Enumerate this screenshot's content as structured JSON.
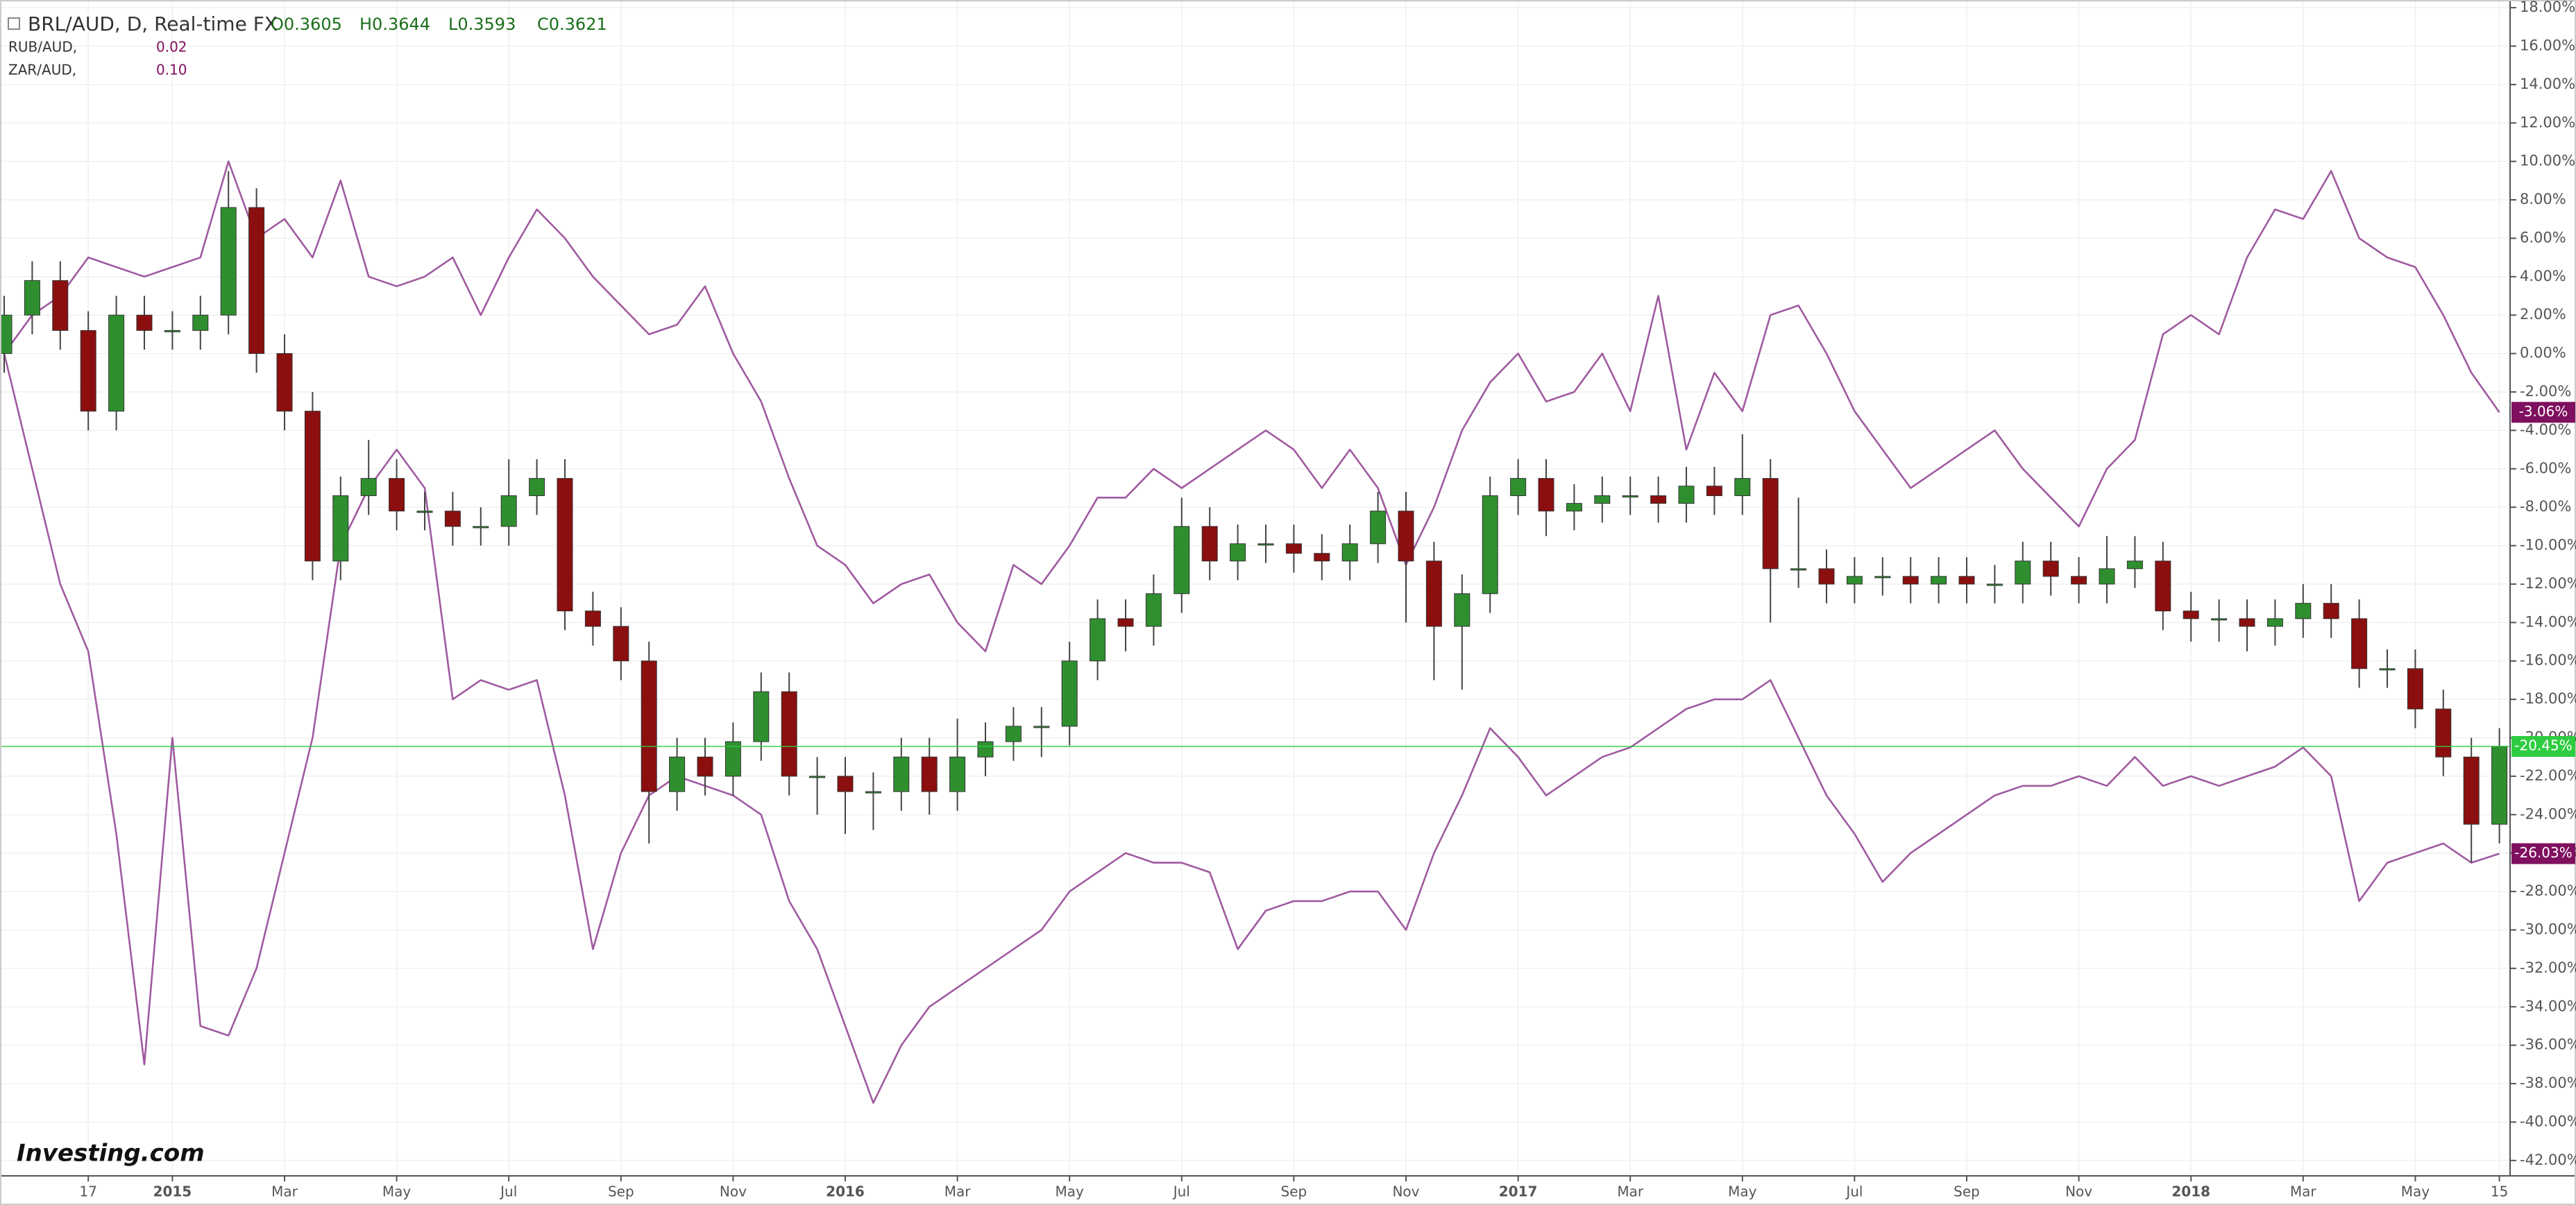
{
  "chart_data": {
    "type": "candlestick",
    "watermark": "Investing.com",
    "candles": {
      "name": "BRL/AUD, D, Real-time FX",
      "ohlc_labels": [
        "O0.3605",
        "H0.3644",
        "L0.3593",
        "C0.3621"
      ],
      "last_label": "-20.45%",
      "up_color": "#2f8f2f",
      "down_color": "#8b0f0f",
      "last_color": "#2ecc40",
      "open": [
        0,
        2,
        3.8,
        1.2,
        -3,
        2,
        1.2,
        1.2,
        2,
        7.6,
        0,
        -3,
        -10.8,
        -7.4,
        -6.5,
        -8.2,
        -8.2,
        -9,
        -9,
        -7.4,
        -6.5,
        -13.4,
        -14.2,
        -16,
        -22.8,
        -21,
        -22,
        -20.2,
        -17.6,
        -22,
        -22,
        -22.8,
        -22.8,
        -21,
        -22.8,
        -21,
        -20.2,
        -19.4,
        -19.4,
        -16,
        -13.8,
        -14.2,
        -12.5,
        -9,
        -10.8,
        -9.9,
        -9.9,
        -10.4,
        -10.8,
        -9.9,
        -8.2,
        -10.8,
        -14.2,
        -12.5,
        -7.4,
        -6.5,
        -8.2,
        -7.8,
        -7.4,
        -7.4,
        -7.8,
        -6.9,
        -7.4,
        -6.5,
        -11.2,
        -11.2,
        -12,
        -11.6,
        -11.6,
        -12,
        -11.6,
        -12,
        -12,
        -10.8,
        -11.6,
        -12,
        -11.2,
        -10.8,
        -13.4,
        -13.8,
        -13.8,
        -14.2,
        -13.8,
        -13,
        -13.8,
        -16.4,
        -16.4,
        -18.5,
        -21,
        -24.5
      ],
      "high": [
        3,
        4.8,
        4.8,
        2.2,
        3,
        3,
        2.2,
        3,
        9.5,
        8.6,
        1,
        -2,
        -6.4,
        -4.5,
        -5.5,
        -7.2,
        -7.2,
        -8,
        -5.5,
        -5.5,
        -5.5,
        -12.4,
        -13.2,
        -15,
        -20,
        -20,
        -19.2,
        -16.6,
        -16.6,
        -21,
        -21,
        -21.8,
        -20,
        -20,
        -19,
        -19.2,
        -18.4,
        -18.4,
        -15,
        -12.8,
        -12.8,
        -11.5,
        -7.5,
        -8,
        -8.9,
        -8.9,
        -8.9,
        -9.4,
        -8.9,
        -7.2,
        -7.2,
        -9.8,
        -11.5,
        -6.4,
        -5.5,
        -5.5,
        -6.8,
        -6.4,
        -6.4,
        -6.4,
        -5.9,
        -5.9,
        -4.2,
        -5.5,
        -7.5,
        -10.2,
        -10.6,
        -10.6,
        -10.6,
        -10.6,
        -10.6,
        -11,
        -9.8,
        -9.8,
        -10.6,
        -9.5,
        -9.5,
        -9.8,
        -12.4,
        -12.8,
        -12.8,
        -12.8,
        -12,
        -12,
        -12.8,
        -15.4,
        -15.4,
        -17.5,
        -20,
        -19.5
      ],
      "low": [
        -1,
        1,
        0.2,
        -4,
        -4,
        0.2,
        0.2,
        0.2,
        1,
        -1,
        -4,
        -11.8,
        -11.8,
        -8.4,
        -9.2,
        -9.2,
        -10,
        -10,
        -10,
        -8.4,
        -14.4,
        -15.2,
        -17,
        -25.5,
        -23.8,
        -23,
        -23,
        -21.2,
        -23,
        -24,
        -25,
        -24.8,
        -23.8,
        -24,
        -23.8,
        -22,
        -21.2,
        -21,
        -20.4,
        -17,
        -15.5,
        -15.2,
        -13.5,
        -11.8,
        -11.8,
        -10.9,
        -11.4,
        -11.8,
        -11.8,
        -10.9,
        -14,
        -17,
        -17.5,
        -13.5,
        -8.4,
        -9.5,
        -9.2,
        -8.8,
        -8.4,
        -8.8,
        -8.8,
        -8.4,
        -8.4,
        -14,
        -12.2,
        -13,
        -13,
        -12.6,
        -13,
        -13,
        -13,
        -13,
        -13,
        -12.6,
        -13,
        -13,
        -12.2,
        -14.4,
        -15,
        -15,
        -15.5,
        -15.2,
        -14.8,
        -14.8,
        -17.4,
        -17.4,
        -19.5,
        -22,
        -26.5,
        -25.5
      ],
      "close": [
        2,
        3.8,
        1.2,
        -3,
        2,
        1.2,
        1.2,
        2,
        7.6,
        0,
        -3,
        -10.8,
        -7.4,
        -6.5,
        -8.2,
        -8.2,
        -9,
        -9,
        -7.4,
        -6.5,
        -13.4,
        -14.2,
        -16,
        -22.8,
        -21,
        -22,
        -20.2,
        -17.6,
        -22,
        -22,
        -22.8,
        -22.8,
        -21,
        -22.8,
        -21,
        -20.2,
        -19.4,
        -19.4,
        -16,
        -13.8,
        -14.2,
        -12.5,
        -9,
        -10.8,
        -9.9,
        -9.9,
        -10.4,
        -10.8,
        -9.9,
        -8.2,
        -10.8,
        -14.2,
        -12.5,
        -7.4,
        -6.5,
        -8.2,
        -7.8,
        -7.4,
        -7.4,
        -7.8,
        -6.9,
        -7.4,
        -6.5,
        -11.2,
        -11.2,
        -12,
        -11.6,
        -11.6,
        -12,
        -11.6,
        -12,
        -12,
        -10.8,
        -11.6,
        -12,
        -11.2,
        -10.8,
        -13.4,
        -13.8,
        -13.8,
        -14.2,
        -13.8,
        -13,
        -13.8,
        -16.4,
        -16.4,
        -18.5,
        -21,
        -24.5,
        -20.45
      ]
    },
    "series": [
      {
        "name": "RUB/AUD,",
        "header_value": "0.02",
        "last_label": "-26.03%",
        "color": "#a05aa0",
        "label_color": "#7f0f5f",
        "values": [
          0,
          -6,
          -12,
          -15.5,
          -25,
          -37,
          -20,
          -35,
          -35.5,
          -32,
          -26,
          -20,
          -10,
          -7,
          -5,
          -7,
          -18,
          -17,
          -17.5,
          -17,
          -23,
          -31,
          -26,
          -23,
          -22,
          -22.5,
          -23,
          -24,
          -28.5,
          -31,
          -35,
          -39,
          -36,
          -34,
          -33,
          -32,
          -31,
          -30,
          -28,
          -27,
          -26,
          -26.5,
          -26.5,
          -27,
          -31,
          -29,
          -28.5,
          -28.5,
          -28,
          -28,
          -30,
          -26,
          -23,
          -19.5,
          -21,
          -23,
          -22,
          -21,
          -20.5,
          -19.5,
          -18.5,
          -18,
          -18,
          -17,
          -20,
          -23,
          -25,
          -27.5,
          -26,
          -25,
          -24,
          -23,
          -22.5,
          -22.5,
          -22,
          -22.5,
          -21,
          -22.5,
          -22,
          -22.5,
          -22,
          -21.5,
          -20.5,
          -22,
          -28.5,
          -26.5,
          -26,
          -25.5,
          -26.5,
          -26.03
        ]
      },
      {
        "name": "ZAR/AUD,",
        "header_value": "0.10",
        "last_label": "-3.06%",
        "color": "#a05aa0",
        "label_color": "#7f0f5f",
        "values": [
          0,
          2,
          3,
          5,
          4.5,
          4,
          4.5,
          5,
          10,
          6,
          7,
          5,
          9,
          4,
          3.5,
          4,
          5,
          2,
          5,
          7.5,
          6,
          4,
          2.5,
          1,
          1.5,
          3.5,
          0,
          -2.5,
          -6.5,
          -10,
          -11,
          -13,
          -12,
          -11.5,
          -14,
          -15.5,
          -11,
          -12,
          -10,
          -7.5,
          -7.5,
          -6,
          -7,
          -6,
          -5,
          -4,
          -5,
          -7,
          -5,
          -7,
          -11,
          -8,
          -4,
          -1.5,
          0,
          -2.5,
          -2,
          0,
          -3,
          3,
          -5,
          -1,
          -3,
          2,
          2.5,
          0,
          -3,
          -5,
          -7,
          -6,
          -5,
          -4,
          -6,
          -7.5,
          -9,
          -6,
          -4.5,
          1,
          2,
          1,
          5,
          7.5,
          7,
          9.5,
          6,
          5,
          4.5,
          2,
          -1,
          -3.06
        ]
      }
    ],
    "categories": [
      null,
      null,
      null,
      "17",
      null,
      null,
      "2015",
      null,
      null,
      null,
      "Mar",
      null,
      null,
      null,
      "May",
      null,
      null,
      null,
      "Jul",
      null,
      null,
      null,
      "Sep",
      null,
      null,
      null,
      "Nov",
      null,
      null,
      null,
      "2016",
      null,
      null,
      null,
      "Mar",
      null,
      null,
      null,
      "May",
      null,
      null,
      null,
      "Jul",
      null,
      null,
      null,
      "Sep",
      null,
      null,
      null,
      "Nov",
      null,
      null,
      null,
      "2017",
      null,
      null,
      null,
      "Mar",
      null,
      null,
      null,
      "May",
      null,
      null,
      null,
      "Jul",
      null,
      null,
      null,
      "Sep",
      null,
      null,
      null,
      "Nov",
      null,
      null,
      null,
      "2018",
      null,
      null,
      null,
      "Mar",
      null,
      null,
      null,
      "May",
      null,
      null,
      "15"
    ],
    "ylim": [
      -42.8,
      18.4
    ],
    "yticks": [
      {
        "value": 18,
        "label": "18.00%"
      },
      {
        "value": 16,
        "label": "16.00%"
      },
      {
        "value": 14,
        "label": "14.00%"
      },
      {
        "value": 12,
        "label": "12.00%"
      },
      {
        "value": 10,
        "label": "10.00%"
      },
      {
        "value": 8,
        "label": "8.00%"
      },
      {
        "value": 6,
        "label": "6.00%"
      },
      {
        "value": 4,
        "label": "4.00%"
      },
      {
        "value": 2,
        "label": "2.00%"
      },
      {
        "value": 0,
        "label": "0.00%"
      },
      {
        "value": -2,
        "label": "-2.00%"
      },
      {
        "value": -4,
        "label": "-4.00%"
      },
      {
        "value": -6,
        "label": "-6.00%"
      },
      {
        "value": -8,
        "label": "-8.00%"
      },
      {
        "value": -10,
        "label": "-10.00%"
      },
      {
        "value": -12,
        "label": "-12.00%"
      },
      {
        "value": -14,
        "label": "-14.00%"
      },
      {
        "value": -16,
        "label": "-16.00%"
      },
      {
        "value": -18,
        "label": "-18.00%"
      },
      {
        "value": -20,
        "label": "-20.00%"
      },
      {
        "value": -22,
        "label": "-22.00%"
      },
      {
        "value": -24,
        "label": "-24.00%"
      },
      {
        "value": -26,
        "label": "-26.00%"
      },
      {
        "value": -28,
        "label": "-28.00%"
      },
      {
        "value": -30,
        "label": "-30.00%"
      },
      {
        "value": -32,
        "label": "-32.00%"
      },
      {
        "value": -34,
        "label": "-34.00%"
      },
      {
        "value": -36,
        "label": "-36.00%"
      },
      {
        "value": -38,
        "label": "-38.00%"
      },
      {
        "value": -40,
        "label": "-40.00%"
      },
      {
        "value": -42,
        "label": "-42.00%"
      }
    ],
    "grid": true
  }
}
